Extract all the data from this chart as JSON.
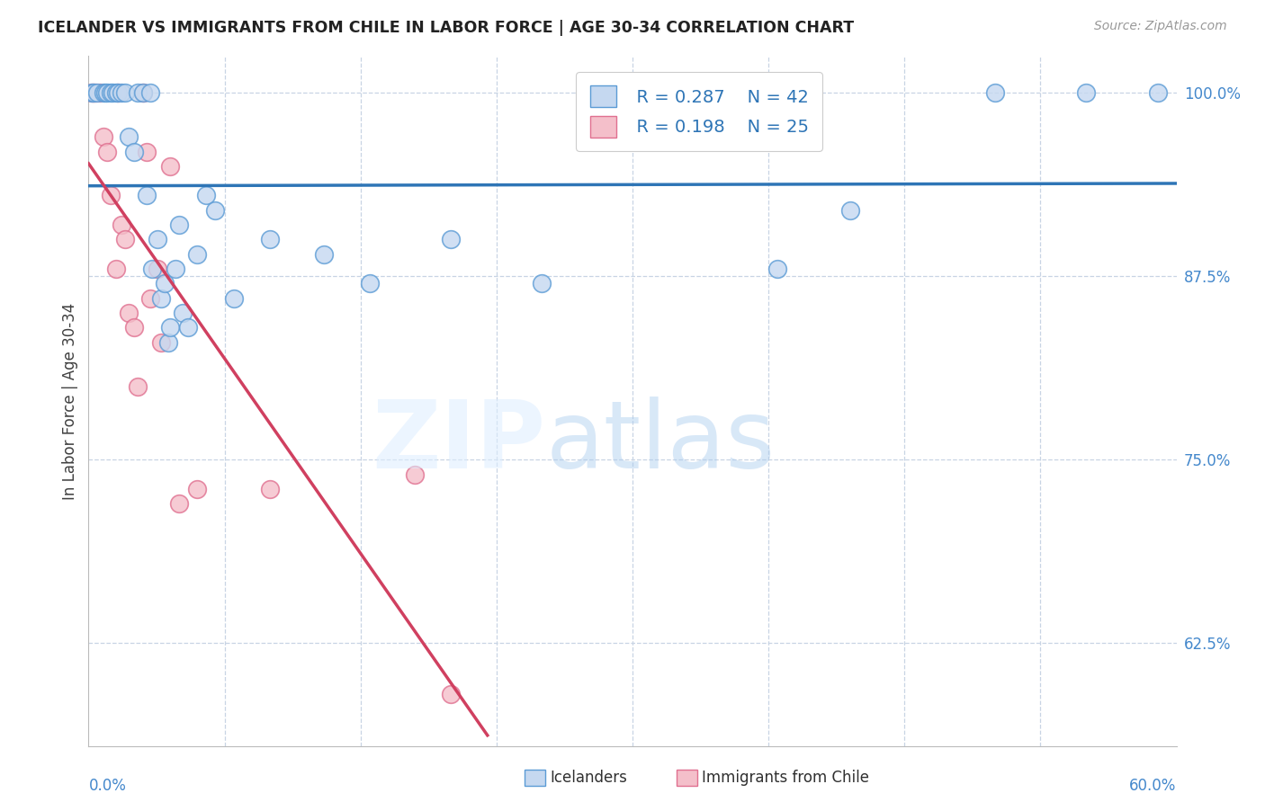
{
  "title": "ICELANDER VS IMMIGRANTS FROM CHILE IN LABOR FORCE | AGE 30-34 CORRELATION CHART",
  "source": "Source: ZipAtlas.com",
  "ylabel": "In Labor Force | Age 30-34",
  "xmin": 0.0,
  "xmax": 0.6,
  "ymin": 0.555,
  "ymax": 1.025,
  "legend_blue_r": "R = 0.287",
  "legend_blue_n": "N = 42",
  "legend_pink_r": "R = 0.198",
  "legend_pink_n": "N = 25",
  "blue_face": "#c5d8f0",
  "blue_edge": "#5b9bd5",
  "pink_face": "#f4bfca",
  "pink_edge": "#e07090",
  "blue_line": "#2e75b6",
  "pink_line": "#d04060",
  "grid_color": "#c8d4e4",
  "title_color": "#222222",
  "axis_label_color": "#4488cc",
  "ytick_positions": [
    0.625,
    0.75,
    0.875,
    1.0
  ],
  "ytick_labels": [
    "62.5%",
    "75.0%",
    "87.5%",
    "100.0%"
  ],
  "blue_x": [
    0.002,
    0.003,
    0.005,
    0.008,
    0.009,
    0.01,
    0.012,
    0.013,
    0.015,
    0.016,
    0.018,
    0.02,
    0.022,
    0.025,
    0.027,
    0.03,
    0.032,
    0.034,
    0.035,
    0.038,
    0.04,
    0.042,
    0.044,
    0.045,
    0.048,
    0.05,
    0.052,
    0.055,
    0.06,
    0.065,
    0.07,
    0.08,
    0.1,
    0.13,
    0.155,
    0.2,
    0.25,
    0.38,
    0.42,
    0.5,
    0.55,
    0.59
  ],
  "blue_y": [
    1.0,
    1.0,
    1.0,
    1.0,
    1.0,
    1.0,
    1.0,
    1.0,
    1.0,
    1.0,
    1.0,
    1.0,
    0.97,
    0.96,
    1.0,
    1.0,
    0.93,
    1.0,
    0.88,
    0.9,
    0.86,
    0.87,
    0.83,
    0.84,
    0.88,
    0.91,
    0.85,
    0.84,
    0.89,
    0.93,
    0.92,
    0.86,
    0.9,
    0.89,
    0.87,
    0.9,
    0.87,
    0.88,
    0.92,
    1.0,
    1.0,
    1.0
  ],
  "pink_x": [
    0.002,
    0.003,
    0.004,
    0.006,
    0.008,
    0.01,
    0.012,
    0.015,
    0.016,
    0.018,
    0.02,
    0.022,
    0.025,
    0.027,
    0.03,
    0.032,
    0.034,
    0.038,
    0.04,
    0.045,
    0.05,
    0.06,
    0.1,
    0.18,
    0.2
  ],
  "pink_y": [
    1.0,
    1.0,
    1.0,
    1.0,
    0.97,
    0.96,
    0.93,
    0.88,
    1.0,
    0.91,
    0.9,
    0.85,
    0.84,
    0.8,
    1.0,
    0.96,
    0.86,
    0.88,
    0.83,
    0.95,
    0.72,
    0.73,
    0.73,
    0.74,
    0.59
  ]
}
